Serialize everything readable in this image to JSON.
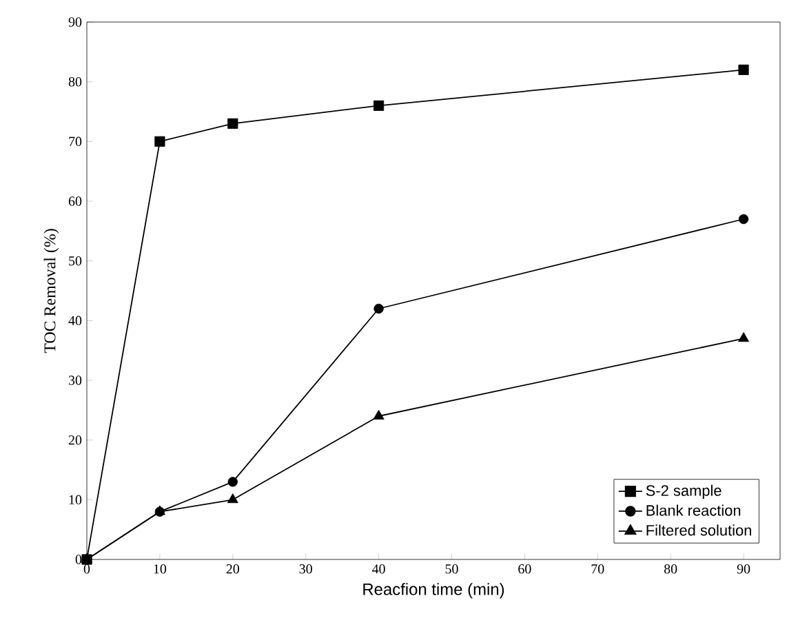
{
  "chart_data": {
    "type": "line",
    "xlabel": "Reacfion time (min)",
    "ylabel": "TOC Removal (%)",
    "x": [
      0,
      10,
      20,
      40,
      90
    ],
    "series": [
      {
        "name": "S-2 sample",
        "color": "#000000",
        "marker": "square",
        "values": [
          0,
          70,
          73,
          76,
          82
        ]
      },
      {
        "name": "Blank reaction",
        "color": "#000000",
        "marker": "circle",
        "values": [
          0,
          8,
          13,
          42,
          57
        ]
      },
      {
        "name": "Filtered solution",
        "color": "#000000",
        "marker": "triangle",
        "values": [
          0,
          8,
          10,
          24,
          37
        ]
      }
    ],
    "xlim": [
      0,
      95
    ],
    "ylim": [
      0,
      90
    ],
    "xticks": [
      0,
      10,
      20,
      30,
      40,
      50,
      60,
      70,
      80,
      90
    ],
    "yticks": [
      0,
      10,
      20,
      30,
      40,
      50,
      60,
      70,
      80,
      90
    ],
    "grid": false,
    "legend": "bottom right",
    "line_style": "solid"
  }
}
